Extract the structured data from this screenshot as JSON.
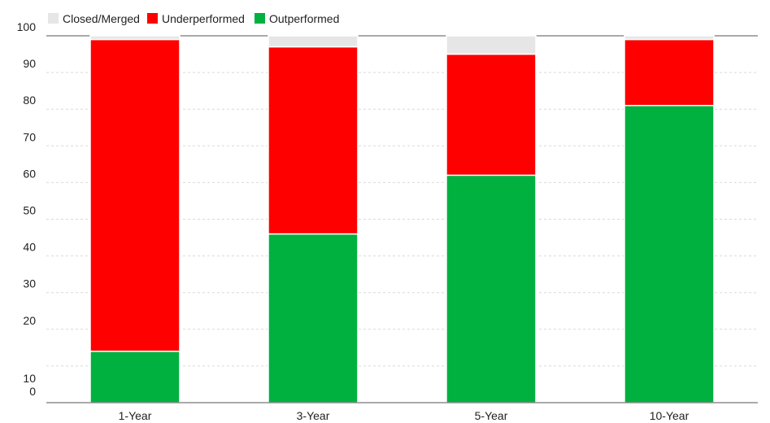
{
  "chart_data": {
    "type": "bar",
    "stacked": true,
    "categories": [
      "1-Year",
      "3-Year",
      "5-Year",
      "10-Year"
    ],
    "series": [
      {
        "name": "Outperformed",
        "color": "#00b140",
        "values": [
          14,
          46,
          62,
          81
        ]
      },
      {
        "name": "Underperformed",
        "color": "#ff0000",
        "values": [
          85,
          51,
          33,
          18
        ]
      },
      {
        "name": "Closed/Merged",
        "color": "#e6e6e6",
        "values": [
          1,
          3,
          5,
          1
        ]
      }
    ],
    "legend_order": [
      "Closed/Merged",
      "Underperformed",
      "Outperformed"
    ],
    "yticks": [
      0,
      10,
      20,
      30,
      40,
      50,
      60,
      70,
      80,
      90,
      100
    ],
    "ylim": [
      0,
      100
    ],
    "grid": true,
    "legend_position": "top-left"
  }
}
